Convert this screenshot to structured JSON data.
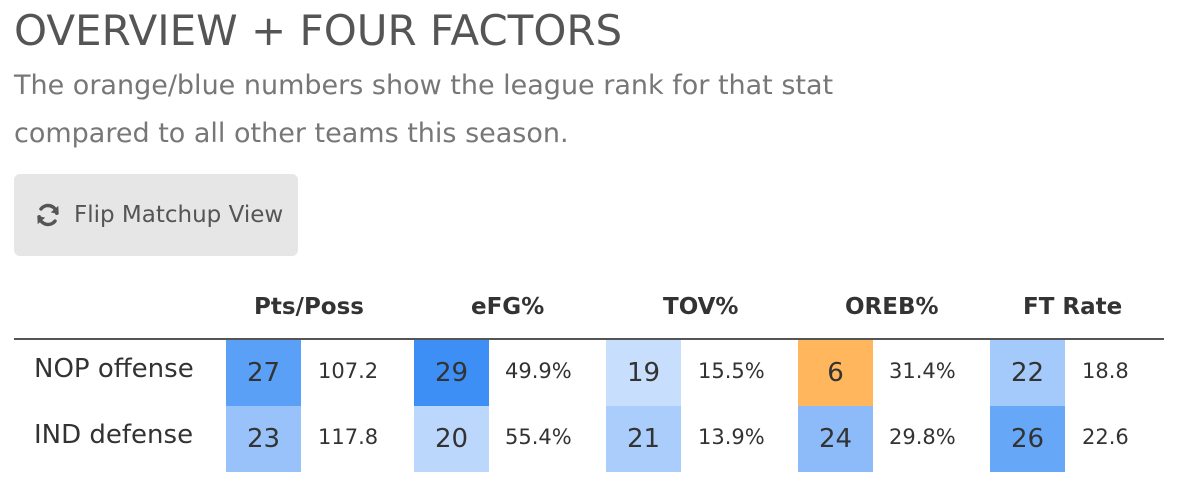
{
  "title": "OVERVIEW + FOUR FACTORS",
  "subtitle": "The orange/blue numbers show the league rank for that stat compared to all other teams this season.",
  "flip_button": {
    "label": "Flip Matchup View",
    "icon": "refresh-icon"
  },
  "table": {
    "columns": [
      "Pts/Poss",
      "eFG%",
      "TOV%",
      "OREB%",
      "FT Rate"
    ],
    "rows": [
      {
        "label": "NOP offense",
        "cells": [
          {
            "rank": "27",
            "value": "107.2",
            "color": "#5aa0f7"
          },
          {
            "rank": "29",
            "value": "49.9%",
            "color": "#3d8ef5"
          },
          {
            "rank": "19",
            "value": "15.5%",
            "color": "#c8defd"
          },
          {
            "rank": "6",
            "value": "31.4%",
            "color": "#ffb65c"
          },
          {
            "rank": "22",
            "value": "18.8",
            "color": "#a4c9fb"
          }
        ]
      },
      {
        "label": "IND defense",
        "cells": [
          {
            "rank": "23",
            "value": "117.8",
            "color": "#99c2fa"
          },
          {
            "rank": "20",
            "value": "55.4%",
            "color": "#bcd7fc"
          },
          {
            "rank": "21",
            "value": "13.9%",
            "color": "#aacdfb"
          },
          {
            "rank": "24",
            "value": "29.8%",
            "color": "#8dbbf9"
          },
          {
            "rank": "26",
            "value": "22.6",
            "color": "#67a7f7"
          }
        ]
      }
    ]
  }
}
